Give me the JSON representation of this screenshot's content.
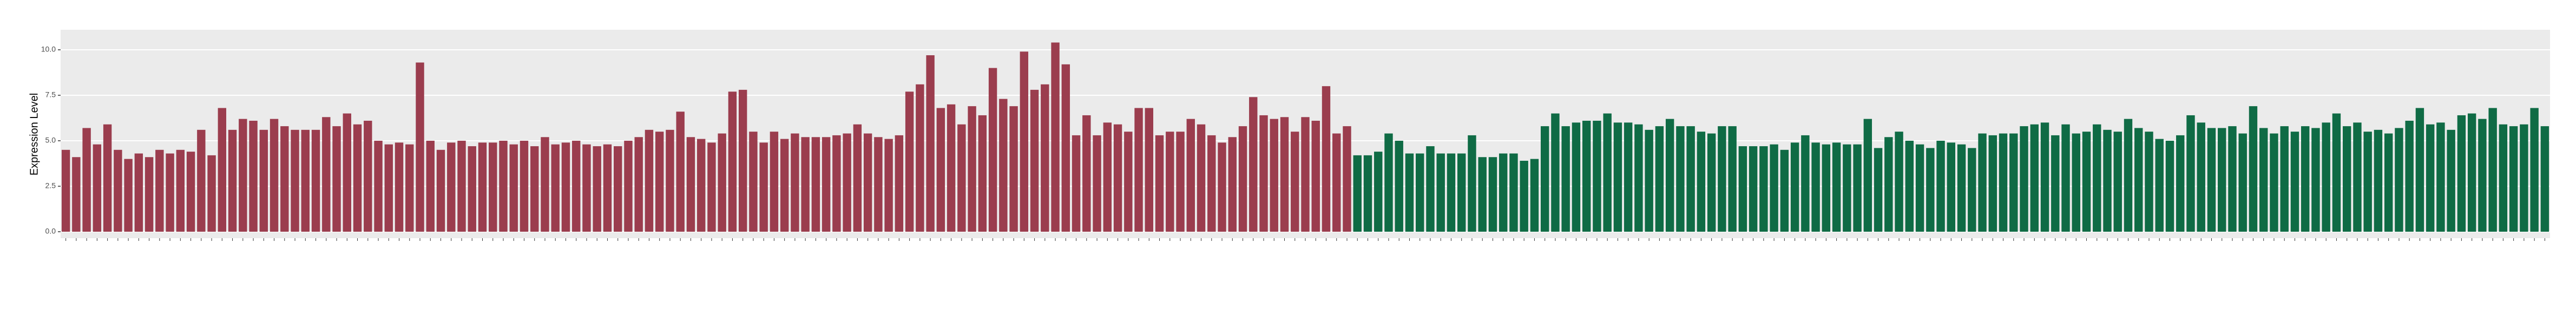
{
  "chart_data": {
    "type": "bar",
    "y_label": "Expression Level",
    "ylim": [
      0,
      11.1
    ],
    "yticks": [
      {
        "value": 0,
        "label": "0.0"
      },
      {
        "value": 2.5,
        "label": "2.5"
      },
      {
        "value": 5,
        "label": "5.0"
      },
      {
        "value": 7.5,
        "label": "7.5"
      },
      {
        "value": 10,
        "label": "10.0"
      }
    ],
    "grid": true,
    "series": [
      {
        "color": "#9b3d4e",
        "values": [
          4.5,
          4.1,
          5.7,
          4.8,
          5.9,
          4.5,
          4.0,
          4.3,
          4.1,
          4.5,
          4.3,
          4.5,
          4.4,
          5.6,
          4.2,
          6.8,
          5.6,
          6.2,
          6.1,
          5.6,
          6.2,
          5.8,
          5.6,
          5.6,
          5.6,
          6.3,
          5.8,
          6.5,
          5.9,
          6.1,
          5.0,
          4.8,
          4.9,
          4.8,
          9.3,
          5.0,
          4.5,
          4.9,
          5.0,
          4.7,
          4.9,
          4.9,
          5.0,
          4.8,
          5.0,
          4.7,
          5.2,
          4.8,
          4.9,
          5.0,
          4.8,
          4.7,
          4.8,
          4.7,
          5.0,
          5.2,
          5.6,
          5.5,
          5.6,
          6.6,
          5.2,
          5.1,
          4.9,
          5.4,
          7.7,
          7.8,
          5.5,
          4.9,
          5.5,
          5.1,
          5.4,
          5.2,
          5.2,
          5.2,
          5.3,
          5.4,
          5.9,
          5.4,
          5.2,
          5.1,
          5.3,
          7.7,
          8.1,
          9.7,
          6.8,
          7.0,
          5.9,
          6.9,
          6.4,
          9.0,
          7.3,
          6.9,
          9.9,
          7.8,
          8.1,
          10.4,
          9.2,
          5.3,
          6.4,
          5.3,
          6.0,
          5.9,
          5.5,
          6.8,
          6.8,
          5.3,
          5.5,
          5.5,
          6.2,
          5.9,
          5.3,
          4.9,
          5.2,
          5.8,
          7.4,
          6.4,
          6.2,
          6.3,
          5.5,
          6.3,
          6.1,
          8.0,
          5.4,
          5.8,
          null,
          null,
          null,
          null,
          null,
          null,
          null,
          null,
          null,
          null,
          null,
          null,
          null,
          null,
          null,
          null,
          null,
          null,
          null,
          null,
          null,
          null,
          null,
          null,
          null,
          null,
          null,
          null,
          null,
          null,
          null,
          null,
          null,
          null,
          null,
          null,
          null,
          null,
          null,
          null,
          null,
          null,
          null,
          null,
          null,
          null,
          null,
          null,
          null,
          null,
          null,
          null,
          null,
          null,
          null,
          null,
          null,
          null,
          null,
          null,
          null,
          null,
          null,
          null,
          null,
          null,
          null,
          null,
          null,
          null,
          null,
          null,
          null,
          null,
          null,
          null,
          null,
          null,
          null,
          null,
          null,
          null,
          null,
          null,
          null,
          null,
          null,
          null,
          null,
          null,
          null,
          null,
          null,
          null,
          null,
          null,
          null,
          null,
          null,
          null,
          null,
          null,
          null,
          null,
          null,
          null,
          null,
          null,
          null,
          null,
          null,
          null,
          null,
          null,
          null
        ]
      },
      {
        "color": "#0f6b45",
        "values": [
          null,
          null,
          null,
          null,
          null,
          null,
          null,
          null,
          null,
          null,
          null,
          null,
          null,
          null,
          null,
          null,
          null,
          null,
          null,
          null,
          null,
          null,
          null,
          null,
          null,
          null,
          null,
          null,
          null,
          null,
          null,
          null,
          null,
          null,
          null,
          null,
          null,
          null,
          null,
          null,
          null,
          null,
          null,
          null,
          null,
          null,
          null,
          null,
          null,
          null,
          null,
          null,
          null,
          null,
          null,
          null,
          null,
          null,
          null,
          null,
          null,
          null,
          null,
          null,
          null,
          null,
          null,
          null,
          null,
          null,
          null,
          null,
          null,
          null,
          null,
          null,
          null,
          null,
          null,
          null,
          null,
          null,
          null,
          null,
          null,
          null,
          null,
          null,
          null,
          null,
          null,
          null,
          null,
          null,
          null,
          null,
          null,
          null,
          null,
          null,
          null,
          null,
          null,
          null,
          null,
          null,
          null,
          null,
          null,
          null,
          null,
          null,
          null,
          null,
          null,
          null,
          null,
          null,
          null,
          null,
          null,
          null,
          null,
          null,
          4.2,
          4.2,
          4.4,
          5.4,
          5.0,
          4.3,
          4.3,
          4.7,
          4.3,
          4.3,
          4.3,
          5.3,
          4.1,
          4.1,
          4.3,
          4.3,
          3.9,
          4.0,
          5.8,
          6.5,
          5.8,
          6.0,
          6.1,
          6.1,
          6.5,
          6.0,
          6.0,
          5.9,
          5.6,
          5.8,
          6.2,
          5.8,
          5.8,
          5.5,
          5.4,
          5.8,
          5.8,
          4.7,
          4.7,
          4.7,
          4.8,
          4.5,
          4.9,
          5.3,
          4.9,
          4.8,
          4.9,
          4.8,
          4.8,
          6.2,
          4.6,
          5.2,
          5.5,
          5.0,
          4.8,
          4.6,
          5.0,
          4.9,
          4.8,
          4.6,
          5.4,
          5.3,
          5.4,
          5.4,
          5.8,
          5.9,
          6.0,
          5.3,
          5.9,
          5.4,
          5.5,
          5.9,
          5.6,
          5.5,
          6.2,
          5.7,
          5.5,
          5.1,
          5.0,
          5.3,
          6.4,
          6.0,
          5.7,
          5.7,
          5.8,
          5.4,
          6.9,
          5.7,
          5.4,
          5.8,
          5.5,
          5.8,
          5.7,
          6.0,
          6.5,
          5.8,
          6.0,
          5.5,
          5.6,
          5.4,
          5.7,
          6.1,
          6.8,
          5.9,
          6.0,
          5.6,
          6.4,
          6.5,
          6.2,
          6.8,
          5.9,
          5.8,
          5.9,
          6.8,
          5.8
        ]
      }
    ]
  }
}
